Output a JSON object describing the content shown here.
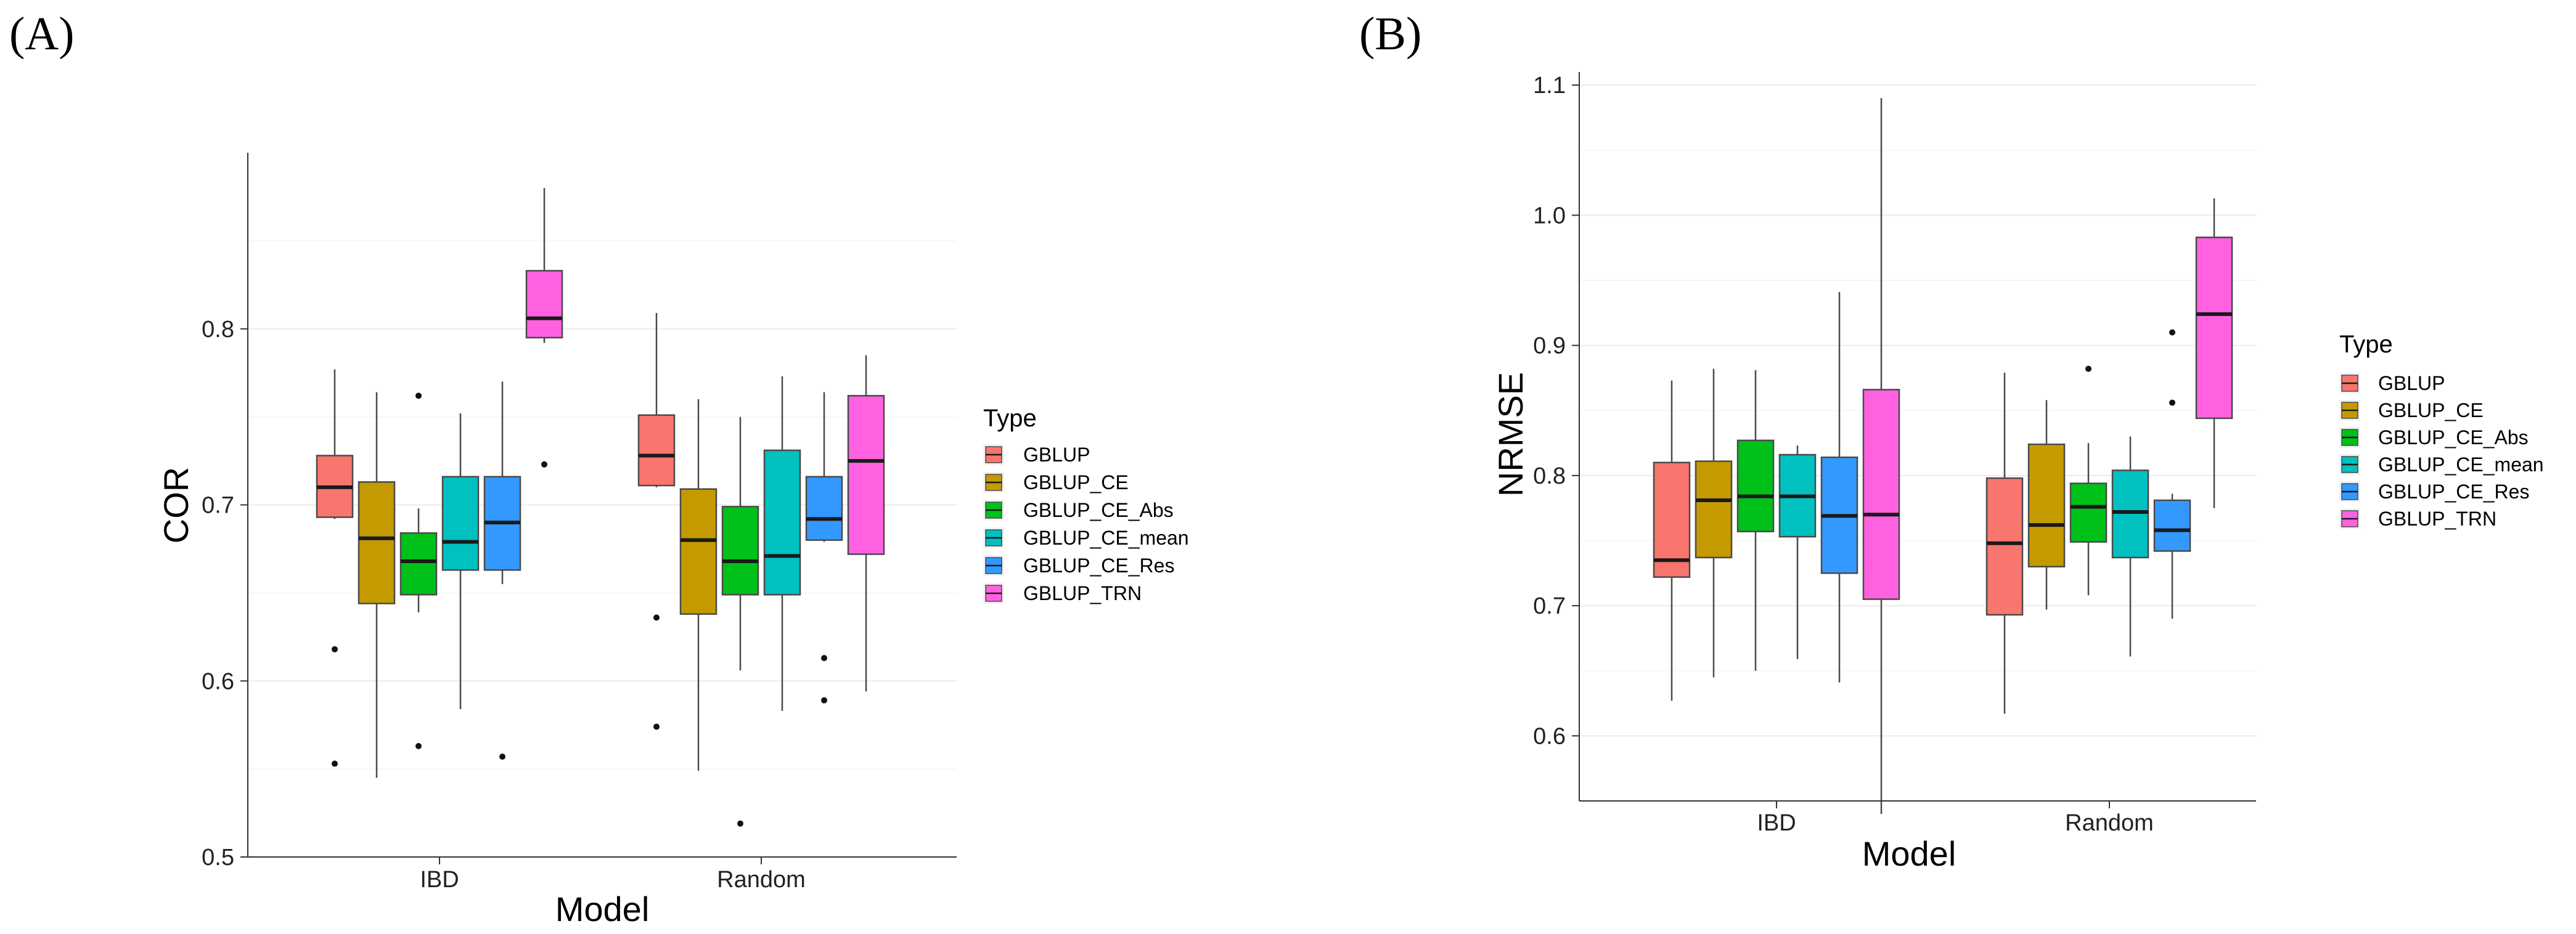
{
  "chart_data": [
    {
      "type": "box",
      "panel_label": "(A)",
      "xlabel": "Model",
      "ylabel": "COR",
      "ylim": [
        0.5,
        0.9
      ],
      "yticks": [
        0.5,
        0.6,
        0.7,
        0.8
      ],
      "categories": [
        "IBD",
        "Random"
      ],
      "legend": {
        "title": "Type",
        "placement": "right"
      },
      "series": [
        {
          "name": "GBLUP",
          "color": "#F8766D",
          "boxes": [
            {
              "whisker_low": 0.692,
              "q1": 0.693,
              "median": 0.71,
              "q3": 0.728,
              "whisker_high": 0.777,
              "outliers": [
                0.618,
                0.553
              ]
            },
            {
              "whisker_low": 0.71,
              "q1": 0.711,
              "median": 0.728,
              "q3": 0.751,
              "whisker_high": 0.809,
              "outliers": [
                0.636,
                0.574
              ]
            }
          ]
        },
        {
          "name": "GBLUP_CE",
          "color": "#C49A00",
          "boxes": [
            {
              "whisker_low": 0.545,
              "q1": 0.644,
              "median": 0.681,
              "q3": 0.713,
              "whisker_high": 0.764,
              "outliers": []
            },
            {
              "whisker_low": 0.549,
              "q1": 0.638,
              "median": 0.68,
              "q3": 0.709,
              "whisker_high": 0.76,
              "outliers": []
            }
          ]
        },
        {
          "name": "GBLUP_CE_Abs",
          "color": "#00C01A",
          "boxes": [
            {
              "whisker_low": 0.639,
              "q1": 0.649,
              "median": 0.668,
              "q3": 0.684,
              "whisker_high": 0.698,
              "outliers": [
                0.762,
                0.563
              ]
            },
            {
              "whisker_low": 0.606,
              "q1": 0.649,
              "median": 0.668,
              "q3": 0.699,
              "whisker_high": 0.75,
              "outliers": [
                0.519
              ]
            }
          ]
        },
        {
          "name": "GBLUP_CE_mean",
          "color": "#00C0C0",
          "boxes": [
            {
              "whisker_low": 0.584,
              "q1": 0.663,
              "median": 0.679,
              "q3": 0.716,
              "whisker_high": 0.752,
              "outliers": []
            },
            {
              "whisker_low": 0.583,
              "q1": 0.649,
              "median": 0.671,
              "q3": 0.731,
              "whisker_high": 0.773,
              "outliers": []
            }
          ]
        },
        {
          "name": "GBLUP_CE_Res",
          "color": "#3399FF",
          "boxes": [
            {
              "whisker_low": 0.655,
              "q1": 0.663,
              "median": 0.69,
              "q3": 0.716,
              "whisker_high": 0.77,
              "outliers": [
                0.557
              ]
            },
            {
              "whisker_low": 0.679,
              "q1": 0.68,
              "median": 0.692,
              "q3": 0.716,
              "whisker_high": 0.764,
              "outliers": [
                0.613,
                0.589
              ]
            }
          ]
        },
        {
          "name": "GBLUP_TRN",
          "color": "#FF61E0",
          "boxes": [
            {
              "whisker_low": 0.792,
              "q1": 0.795,
              "median": 0.806,
              "q3": 0.833,
              "whisker_high": 0.88,
              "outliers": [
                0.723
              ]
            },
            {
              "whisker_low": 0.594,
              "q1": 0.672,
              "median": 0.725,
              "q3": 0.762,
              "whisker_high": 0.785,
              "outliers": []
            }
          ]
        }
      ]
    },
    {
      "type": "box",
      "panel_label": "(B)",
      "xlabel": "Model",
      "ylabel": "NRMSE",
      "ylim": [
        0.55,
        1.11
      ],
      "yticks": [
        0.6,
        0.7,
        0.8,
        0.9,
        1.0,
        1.1
      ],
      "categories": [
        "IBD",
        "Random"
      ],
      "legend": {
        "title": "Type",
        "placement": "right"
      },
      "series": [
        {
          "name": "GBLUP",
          "color": "#F8766D",
          "boxes": [
            {
              "whisker_low": 0.627,
              "q1": 0.722,
              "median": 0.735,
              "q3": 0.81,
              "whisker_high": 0.873,
              "outliers": []
            },
            {
              "whisker_low": 0.617,
              "q1": 0.693,
              "median": 0.748,
              "q3": 0.798,
              "whisker_high": 0.879,
              "outliers": []
            }
          ]
        },
        {
          "name": "GBLUP_CE",
          "color": "#C49A00",
          "boxes": [
            {
              "whisker_low": 0.645,
              "q1": 0.737,
              "median": 0.781,
              "q3": 0.811,
              "whisker_high": 0.882,
              "outliers": []
            },
            {
              "whisker_low": 0.697,
              "q1": 0.73,
              "median": 0.762,
              "q3": 0.824,
              "whisker_high": 0.858,
              "outliers": []
            }
          ]
        },
        {
          "name": "GBLUP_CE_Abs",
          "color": "#00C01A",
          "boxes": [
            {
              "whisker_low": 0.65,
              "q1": 0.757,
              "median": 0.784,
              "q3": 0.827,
              "whisker_high": 0.881,
              "outliers": []
            },
            {
              "whisker_low": 0.708,
              "q1": 0.749,
              "median": 0.776,
              "q3": 0.794,
              "whisker_high": 0.825,
              "outliers": [
                0.882
              ]
            }
          ]
        },
        {
          "name": "GBLUP_CE_mean",
          "color": "#00C0C0",
          "boxes": [
            {
              "whisker_low": 0.659,
              "q1": 0.753,
              "median": 0.784,
              "q3": 0.816,
              "whisker_high": 0.823,
              "outliers": []
            },
            {
              "whisker_low": 0.661,
              "q1": 0.737,
              "median": 0.772,
              "q3": 0.804,
              "whisker_high": 0.83,
              "outliers": []
            }
          ]
        },
        {
          "name": "GBLUP_CE_Res",
          "color": "#3399FF",
          "boxes": [
            {
              "whisker_low": 0.641,
              "q1": 0.725,
              "median": 0.769,
              "q3": 0.814,
              "whisker_high": 0.941,
              "outliers": []
            },
            {
              "whisker_low": 0.69,
              "q1": 0.742,
              "median": 0.758,
              "q3": 0.781,
              "whisker_high": 0.786,
              "outliers": [
                0.91,
                0.856
              ]
            }
          ]
        },
        {
          "name": "GBLUP_TRN",
          "color": "#FF61E0",
          "boxes": [
            {
              "whisker_low": 0.54,
              "q1": 0.705,
              "median": 0.77,
              "q3": 0.866,
              "whisker_high": 1.09,
              "outliers": []
            },
            {
              "whisker_low": 0.775,
              "q1": 0.844,
              "median": 0.924,
              "q3": 0.983,
              "whisker_high": 1.013,
              "outliers": []
            }
          ]
        }
      ]
    }
  ]
}
